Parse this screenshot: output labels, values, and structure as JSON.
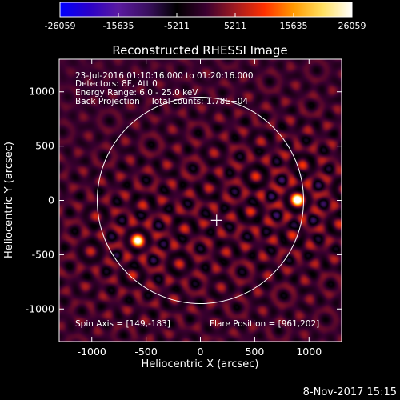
{
  "colorbar": {
    "ticks": [
      "-26059",
      "-15635",
      "-5211",
      "5211",
      "15635",
      "26059"
    ],
    "min": -26059,
    "max": 26059,
    "colormap": [
      "#0000ff",
      "#2a00c8",
      "#5a1aa0",
      "#3a1060",
      "#000000",
      "#3a0030",
      "#a01a20",
      "#ff3000",
      "#ff9a00",
      "#ffe060",
      "#ffffff"
    ]
  },
  "image": {
    "title": "Reconstructed RHESSI Image",
    "annotations": {
      "line1": "23-Jul-2016 01:10:16.000 to 01:20:16.000",
      "line2": "Detectors: 8F, Att 0",
      "line3": "Energy Range: 6.0 - 25.0 keV",
      "line4": "Back Projection    Total counts: 1.78E+04"
    },
    "spin_axis": "Spin Axis = [149,-183]",
    "flare_position": "Flare Position = [961,202]",
    "sources": [
      {
        "x": 890,
        "y": 10,
        "amp": 1.0
      },
      {
        "x": -580,
        "y": -370,
        "amp": 0.85
      }
    ],
    "limb_radius_arcsec": 950,
    "spin_axis_xy": [
      149,
      -183
    ]
  },
  "axes": {
    "xlabel": "Heliocentric X (arcsec)",
    "ylabel": "Heliocentric Y (arcsec)",
    "xlim": [
      -1300,
      1300
    ],
    "ylim": [
      -1300,
      1300
    ],
    "xticks": [
      "-1000",
      "-500",
      "0",
      "500",
      "1000"
    ],
    "yticks": [
      "-1000",
      "-500",
      "0",
      "500",
      "1000"
    ]
  },
  "footer": {
    "timestamp": "8-Nov-2017 15:15"
  }
}
